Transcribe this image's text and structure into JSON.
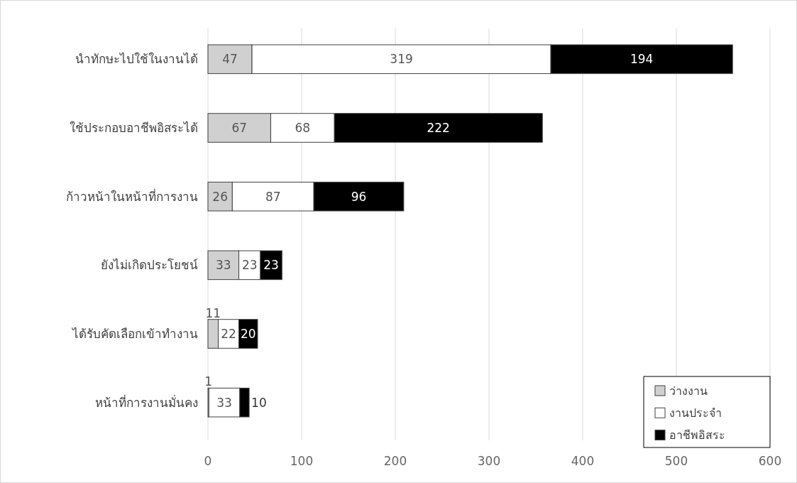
{
  "chart_data": {
    "type": "bar",
    "orientation": "horizontal",
    "stacked": true,
    "categories": [
      "นำทักษะไปใช้ในงานได้",
      "ใช้ประกอบอาชีพอิสระได้",
      "ก้าวหน้าในหน้าที่การงาน",
      "ยังไม่เกิดประโยชน์",
      "ได้รับคัดเลือกเข้าทำงาน",
      "หน้าที่การงานมั่นคง"
    ],
    "series": [
      {
        "name": "ว่างงาน",
        "color": "#d0d0d0",
        "values": [
          47,
          67,
          26,
          33,
          11,
          1
        ]
      },
      {
        "name": "งานประจำ",
        "color": "#ffffff",
        "values": [
          319,
          68,
          87,
          23,
          22,
          33
        ]
      },
      {
        "name": "อาชีพอิสระ",
        "color": "#000000",
        "values": [
          194,
          222,
          96,
          23,
          20,
          10
        ]
      }
    ],
    "xlim": [
      0,
      600
    ],
    "xticks": [
      0,
      100,
      200,
      300,
      400,
      500,
      600
    ],
    "grid": "x",
    "legend": "bottom right",
    "data_labels": true
  }
}
